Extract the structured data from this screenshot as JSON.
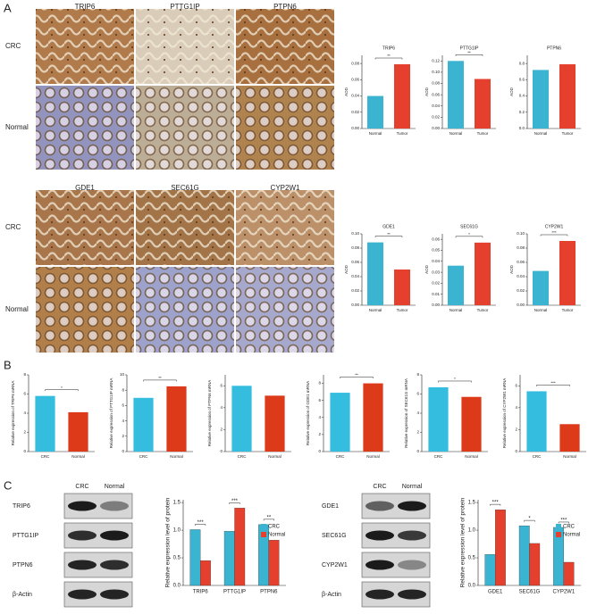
{
  "figure": {
    "panel_labels": [
      "A",
      "B",
      "C"
    ],
    "ihc_top": {
      "genes": [
        "TRIP6",
        "PTTG1IP",
        "PTPN6"
      ],
      "rows": [
        "CRC",
        "Normal"
      ]
    },
    "ihc_bottom": {
      "genes": [
        "GDE1",
        "SEC61G",
        "CYP2W1"
      ],
      "rows": [
        "CRC",
        "Normal"
      ]
    },
    "blot_left": {
      "columns": [
        "CRC",
        "Normal"
      ],
      "rows": [
        "TRIP6",
        "PTTG1IP",
        "PTPN6",
        "β-Actin"
      ]
    },
    "blot_right": {
      "columns": [
        "CRC",
        "Normal"
      ],
      "rows": [
        "GDE1",
        "SEC61G",
        "CYP2W1",
        "β-Actin"
      ]
    }
  },
  "chart_data": [
    {
      "type": "bar",
      "title": "TRIP6",
      "y_label": "AOD",
      "categories": [
        "Normal",
        "Tumor"
      ],
      "values": [
        0.04,
        0.079
      ],
      "colors": [
        "#3ab4d0",
        "#e4402d"
      ],
      "ylim": [
        0,
        0.09
      ],
      "yticks": [
        {
          "value": 0,
          "label": "0.00"
        },
        0.02,
        0.04,
        0.06,
        0.08
      ],
      "significance": "**"
    },
    {
      "type": "bar",
      "title": "PTTG1IP",
      "y_label": "AOD",
      "categories": [
        "Normal",
        "Tumor"
      ],
      "values": [
        0.12,
        0.088
      ],
      "colors": [
        "#3ab4d0",
        "#e4402d"
      ],
      "ylim": [
        0,
        0.13
      ],
      "yticks": [
        {
          "value": 0,
          "label": "0.00"
        },
        0.02,
        0.04,
        0.06,
        0.08,
        {
          "value": 0.1,
          "label": "0.10"
        },
        0.12
      ],
      "significance": "**"
    },
    {
      "type": "bar",
      "title": "PTPN6",
      "y_label": "AOD",
      "categories": [
        "Normal",
        "Tumor"
      ],
      "values": [
        0.72,
        0.79
      ],
      "colors": [
        "#3ab4d0",
        "#e4402d"
      ],
      "ylim": [
        0,
        0.9
      ],
      "yticks": [
        {
          "value": 0,
          "label": "0.0"
        },
        0.2,
        0.4,
        0.6,
        0.8
      ]
    },
    {
      "type": "bar",
      "title": "GDE1",
      "y_label": "AOD",
      "categories": [
        "Normal",
        "Tumor"
      ],
      "values": [
        0.088,
        0.05
      ],
      "colors": [
        "#3ab4d0",
        "#e4402d"
      ],
      "ylim": [
        0,
        0.1
      ],
      "yticks": [
        {
          "value": 0,
          "label": "0.00"
        },
        0.02,
        0.04,
        0.06,
        0.08,
        {
          "value": 0.1,
          "label": "0.10"
        }
      ],
      "significance": "**"
    },
    {
      "type": "bar",
      "title": "SEC61G",
      "y_label": "AOD",
      "categories": [
        "Normal",
        "Tumor"
      ],
      "values": [
        0.036,
        0.057
      ],
      "colors": [
        "#3ab4d0",
        "#e4402d"
      ],
      "ylim": [
        0,
        0.065
      ],
      "yticks": [
        {
          "value": 0,
          "label": "0.00"
        },
        0.01,
        0.02,
        0.03,
        0.04,
        0.05,
        0.06
      ],
      "significance": "*"
    },
    {
      "type": "bar",
      "title": "CYP2W1",
      "y_label": "AOD",
      "categories": [
        "Normal",
        "Tumor"
      ],
      "values": [
        0.048,
        0.09
      ],
      "colors": [
        "#3ab4d0",
        "#e4402d"
      ],
      "ylim": [
        0,
        0.1
      ],
      "yticks": [
        {
          "value": 0,
          "label": "0.00"
        },
        0.02,
        0.04,
        0.06,
        0.08,
        {
          "value": 0.1,
          "label": "0.10"
        }
      ],
      "significance": "***"
    },
    {
      "type": "bar",
      "y_label": "Relative expression of TRIP6 mRNA",
      "categories": [
        "CRC",
        "Normal"
      ],
      "values": [
        5.8,
        4.1
      ],
      "colors": [
        "#35bde0",
        "#dd3a1a"
      ],
      "ylim": [
        0,
        8
      ],
      "yticks": [
        0,
        2,
        4,
        6,
        8
      ],
      "significance": "*"
    },
    {
      "type": "bar",
      "y_label": "Relative expression of PTTG1IP mRNA",
      "categories": [
        "CRC",
        "Normal"
      ],
      "values": [
        7.0,
        8.5
      ],
      "colors": [
        "#35bde0",
        "#dd3a1a"
      ],
      "ylim": [
        0,
        10
      ],
      "yticks": [
        0,
        2,
        4,
        6,
        8,
        10
      ],
      "significance": "**"
    },
    {
      "type": "bar",
      "y_label": "Relative expression of PTPN6 mRNA",
      "categories": [
        "CRC",
        "Normal"
      ],
      "values": [
        6.0,
        5.1
      ],
      "colors": [
        "#35bde0",
        "#dd3a1a"
      ],
      "ylim": [
        0,
        7
      ],
      "yticks": [
        0,
        2,
        4,
        6
      ]
    },
    {
      "type": "bar",
      "y_label": "Relative expression of GDE1 mRNA",
      "categories": [
        "CRC",
        "Normal"
      ],
      "values": [
        6.9,
        8.0
      ],
      "colors": [
        "#35bde0",
        "#dd3a1a"
      ],
      "ylim": [
        0,
        9
      ],
      "yticks": [
        0,
        2,
        4,
        6,
        8
      ],
      "significance": "**"
    },
    {
      "type": "bar",
      "y_label": "Relative expression of SEC61G mRNA",
      "categories": [
        "CRC",
        "Normal"
      ],
      "values": [
        6.7,
        5.7
      ],
      "colors": [
        "#35bde0",
        "#dd3a1a"
      ],
      "ylim": [
        0,
        8
      ],
      "yticks": [
        0,
        2,
        4,
        6,
        8
      ],
      "significance": "*"
    },
    {
      "type": "bar",
      "y_label": "Relative expression of CYP2W1 mRNA",
      "categories": [
        "CRC",
        "Normal"
      ],
      "values": [
        5.5,
        2.5
      ],
      "colors": [
        "#35bde0",
        "#dd3a1a"
      ],
      "ylim": [
        0,
        7
      ],
      "yticks": [
        0,
        2,
        4,
        6
      ],
      "significance": "***"
    },
    {
      "type": "grouped_bar",
      "y_label": "Relative expression level of protein",
      "categories": [
        "TRIP6",
        "PTTG1IP",
        "PTPN6"
      ],
      "series": [
        {
          "name": "CRC",
          "color": "#3ab4d0",
          "values": [
            1.01,
            0.98,
            1.1
          ]
        },
        {
          "name": "Normal",
          "color": "#e4402d",
          "values": [
            0.45,
            1.4,
            0.82
          ]
        }
      ],
      "ylim": [
        0,
        1.55
      ],
      "yticks": [
        {
          "value": 0,
          "label": "0.0"
        },
        0.5,
        {
          "value": 1,
          "label": "1.0"
        },
        1.5
      ],
      "legend": "upper right",
      "significance": [
        "***",
        "***",
        "**"
      ]
    },
    {
      "type": "grouped_bar",
      "y_label": "Relative expression level of protein",
      "categories": [
        "GDE1",
        "SEC61G",
        "CYP2W1"
      ],
      "series": [
        {
          "name": "CRC",
          "color": "#3ab4d0",
          "values": [
            0.56,
            1.08,
            1.05
          ]
        },
        {
          "name": "Normal",
          "color": "#e4402d",
          "values": [
            1.37,
            0.76,
            0.42
          ]
        }
      ],
      "ylim": [
        0,
        1.55
      ],
      "yticks": [
        {
          "value": 0,
          "label": "0.0"
        },
        0.5,
        {
          "value": 1,
          "label": "1.0"
        },
        1.5
      ],
      "legend": "upper right",
      "significance": [
        "***",
        "*",
        "***"
      ]
    }
  ]
}
